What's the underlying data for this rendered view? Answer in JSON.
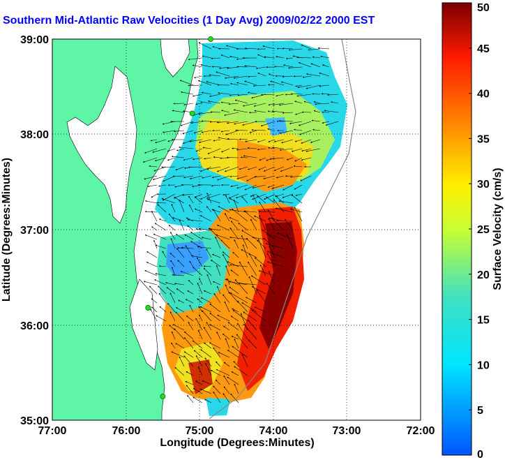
{
  "title": "Southern Mid-Atlantic Raw Velocities (1 Day Avg) 2009/02/22 2000 EST",
  "colors": {
    "title": "#0000ff",
    "land": "#5ef5a6",
    "ocean": "#ffffff"
  },
  "axes": {
    "xlabel": "Longitude (Degrees:Minutes)",
    "ylabel": "Latitude (Degrees:Minutes)",
    "xticks": [
      "77:00",
      "76:00",
      "75:00",
      "74:00",
      "73:00",
      "72:00"
    ],
    "yticks": [
      "39:00",
      "38:00",
      "37:00",
      "36:00",
      "35:00"
    ],
    "xlim": [
      -77,
      -72
    ],
    "ylim": [
      35,
      39
    ],
    "grid": "dotted"
  },
  "colorbar": {
    "label": "Surface Velocity (cm/s)",
    "ticks": [
      "0",
      "5",
      "10",
      "15",
      "20",
      "25",
      "30",
      "35",
      "40",
      "45",
      "50"
    ],
    "range": [
      0,
      50
    ]
  },
  "stations": [
    {
      "name": "station",
      "lon": -74.85,
      "lat": 39.0
    },
    {
      "name": "station",
      "lon": -75.1,
      "lat": 38.22
    },
    {
      "name": "station",
      "lon": -75.7,
      "lat": 36.18
    },
    {
      "name": "station",
      "lon": -75.5,
      "lat": 35.25
    }
  ]
}
